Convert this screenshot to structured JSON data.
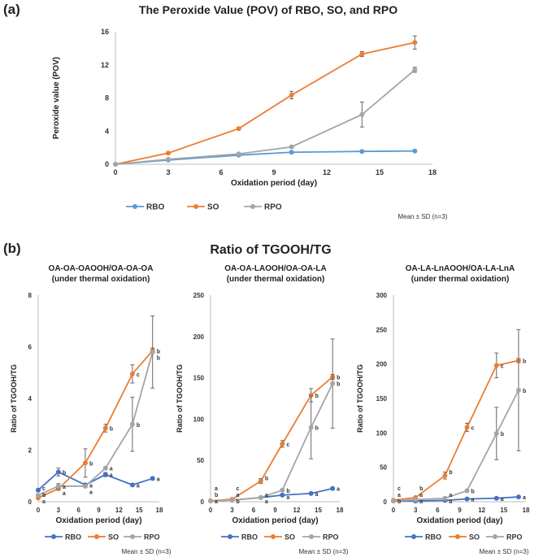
{
  "panels": {
    "a": "(a)",
    "b": "(b)"
  },
  "panel_b_title": "Ratio of TGOOH/TG",
  "colors": {
    "RBO": "#4472c4",
    "SO": "#ed7d31",
    "RPO": "#a5a5a5",
    "RBO_a": "#5b9bd5"
  },
  "chart_data": [
    {
      "type": "line",
      "title": "The Peroxide Value (POV) of RBO, SO, and RPO",
      "xlabel": "Oxidation period (day)",
      "ylabel": "Peroxide value (POV)",
      "xlim": [
        0,
        18
      ],
      "xticks": [
        0,
        3,
        6,
        9,
        12,
        15,
        18
      ],
      "ylim": [
        0,
        16
      ],
      "yticks": [
        0,
        4,
        8,
        12,
        16
      ],
      "x": [
        0,
        3,
        7,
        10,
        14,
        17
      ],
      "legend": "bottom",
      "note": "Mean ± SD  (n=3)",
      "series": [
        {
          "name": "RBO",
          "values": [
            0,
            0.5,
            1.1,
            1.45,
            1.55,
            1.6
          ],
          "err": [
            0,
            0.05,
            0.05,
            0.05,
            0.05,
            0.05
          ],
          "letters": []
        },
        {
          "name": "SO",
          "values": [
            0,
            1.35,
            4.3,
            8.35,
            13.3,
            14.7
          ],
          "err": [
            0,
            0.1,
            0.15,
            0.45,
            0.3,
            0.8
          ],
          "letters": []
        },
        {
          "name": "RPO",
          "values": [
            0,
            0.6,
            1.25,
            2.1,
            6.0,
            11.4
          ],
          "err": [
            0,
            0.05,
            0.1,
            0.1,
            1.5,
            0.3
          ],
          "letters": []
        }
      ]
    },
    {
      "type": "line",
      "title": "OA-OA-OAOOH/OA-OA-OA",
      "subtitle": "(under thermal oxidation)",
      "xlabel": "Oxidation period (day)",
      "ylabel": "Ratio of TGOOH/TG",
      "xlim": [
        0,
        18
      ],
      "xticks": [
        0,
        3,
        6,
        9,
        12,
        15,
        18
      ],
      "ylim": [
        0,
        8
      ],
      "yticks": [
        0,
        2,
        4,
        6,
        8
      ],
      "x": [
        0,
        3,
        7,
        10,
        14,
        17
      ],
      "legend": "bottom",
      "note": "Mean ± SD  (n=3)",
      "series": [
        {
          "name": "RBO",
          "values": [
            0.45,
            1.15,
            0.65,
            1.05,
            0.65,
            0.9
          ],
          "err": [
            0.05,
            0.15,
            0.05,
            0.08,
            0.05,
            0.05
          ],
          "letters": [
            "c",
            "b",
            "a",
            "a",
            "a",
            "a"
          ]
        },
        {
          "name": "SO",
          "values": [
            0.15,
            0.5,
            1.5,
            2.85,
            4.95,
            5.85
          ],
          "err": [
            0.05,
            0.05,
            0.55,
            0.15,
            0.35,
            0.1
          ],
          "letters": [
            "a",
            "a",
            "b",
            "b",
            "c",
            "b"
          ]
        },
        {
          "name": "RPO",
          "values": [
            0.25,
            0.6,
            0.6,
            1.3,
            3.0,
            5.8
          ],
          "err": [
            0.05,
            0.1,
            0.05,
            0.05,
            1.05,
            1.4
          ],
          "letters": [
            "b",
            "a",
            "a",
            "a",
            "b",
            "b"
          ]
        }
      ]
    },
    {
      "type": "line",
      "title": "OA-OA-LAOOH/OA-OA-LA",
      "subtitle": "(under thermal oxidation)",
      "xlabel": "Oxidation period (day)",
      "ylabel": "Ratio of TGOOH/TG",
      "xlim": [
        0,
        18
      ],
      "xticks": [
        0,
        3,
        6,
        9,
        12,
        15,
        18
      ],
      "ylim": [
        0,
        250
      ],
      "yticks": [
        0,
        50,
        100,
        150,
        200,
        250
      ],
      "x": [
        0,
        3,
        7,
        10,
        14,
        17
      ],
      "legend": "bottom",
      "note": "Mean ± SD  (n=3)",
      "series": [
        {
          "name": "RBO",
          "values": [
            1,
            2,
            5,
            8,
            10,
            16
          ],
          "err": [
            0.3,
            0.3,
            0.5,
            0.5,
            0.5,
            1
          ],
          "letters": [
            "a",
            "a",
            "a",
            "a",
            "a",
            "a"
          ]
        },
        {
          "name": "SO",
          "values": [
            1,
            3,
            25,
            70,
            129,
            151
          ],
          "err": [
            0.3,
            0.5,
            3,
            4,
            8,
            3
          ],
          "letters": [
            "b",
            "c",
            "b",
            "c",
            "b",
            "b"
          ]
        },
        {
          "name": "RPO",
          "values": [
            1,
            2,
            5,
            14,
            90,
            143
          ],
          "err": [
            0.3,
            0.3,
            0.5,
            1,
            38,
            54
          ],
          "letters": [
            "a",
            "b",
            "a",
            "b",
            "b",
            "b"
          ]
        }
      ]
    },
    {
      "type": "line",
      "title": "OA-LA-LnAOOH/OA-LA-LnA",
      "subtitle": "(under thermal oxidation)",
      "xlabel": "Oxidation period (day)",
      "ylabel": "Ratio of TGOOH/TG",
      "xlim": [
        0,
        18
      ],
      "xticks": [
        0,
        3,
        6,
        9,
        12,
        15,
        18
      ],
      "ylim": [
        0,
        300
      ],
      "yticks": [
        0,
        50,
        100,
        150,
        200,
        250,
        300
      ],
      "x": [
        0,
        3,
        7,
        10,
        14,
        17
      ],
      "legend": "bottom",
      "note": "Mean ± SD  (n=3)",
      "series": [
        {
          "name": "RBO",
          "values": [
            1,
            1,
            2,
            4,
            5,
            7
          ],
          "err": [
            0.3,
            0.3,
            0.3,
            0.5,
            0.5,
            0.5
          ],
          "letters": [
            "a",
            "a",
            "a",
            "a",
            "a",
            "a"
          ]
        },
        {
          "name": "SO",
          "values": [
            2,
            6,
            38,
            108,
            198,
            205
          ],
          "err": [
            0.5,
            1,
            5,
            6,
            18,
            3
          ],
          "letters": [
            "c",
            "b",
            "b",
            "c",
            "c",
            "b"
          ]
        },
        {
          "name": "RPO",
          "values": [
            1,
            3,
            5,
            16,
            99,
            162
          ],
          "err": [
            0.3,
            0.5,
            0.5,
            1,
            38,
            88
          ],
          "letters": [
            "b",
            "a",
            "a",
            "b",
            "b",
            "b"
          ]
        }
      ]
    }
  ]
}
